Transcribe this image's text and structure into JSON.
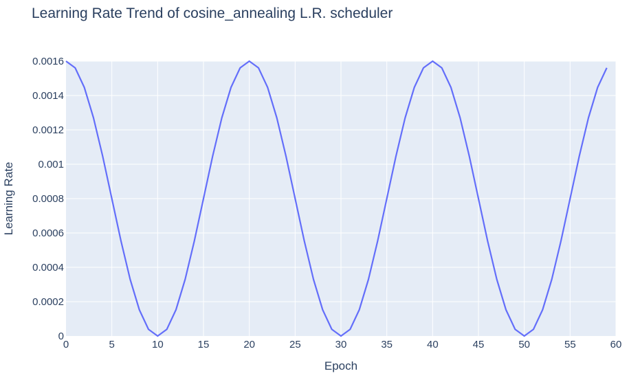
{
  "chart_data": {
    "type": "line",
    "title": "Learning Rate Trend of cosine_annealing L.R. scheduler",
    "xlabel": "Epoch",
    "ylabel": "Learning Rate",
    "xlim": [
      0,
      60
    ],
    "ylim": [
      0,
      0.0016
    ],
    "x_ticks": [
      0,
      5,
      10,
      15,
      20,
      25,
      30,
      35,
      40,
      45,
      50,
      55,
      60
    ],
    "x_tick_labels": [
      "0",
      "5",
      "10",
      "15",
      "20",
      "25",
      "30",
      "35",
      "40",
      "45",
      "50",
      "55",
      "60"
    ],
    "y_ticks": [
      0,
      0.0002,
      0.0004,
      0.0006,
      0.0008,
      0.001,
      0.0012,
      0.0014,
      0.0016
    ],
    "y_tick_labels": [
      "0",
      "0.0002",
      "0.0004",
      "0.0006",
      "0.0008",
      "0.001",
      "0.0012",
      "0.0014",
      "0.0016"
    ],
    "grid": true,
    "colors": {
      "line": "#636efa",
      "plot_bg": "#e5ecf6",
      "grid": "#ffffff",
      "text": "#2a3f5f"
    },
    "series": [
      {
        "x": [
          0,
          1,
          2,
          3,
          4,
          5,
          6,
          7,
          8,
          9,
          10,
          11,
          12,
          13,
          14,
          15,
          16,
          17,
          18,
          19,
          20,
          21,
          22,
          23,
          24,
          25,
          26,
          27,
          28,
          29,
          30,
          31,
          32,
          33,
          34,
          35,
          36,
          37,
          38,
          39,
          40,
          41,
          42,
          43,
          44,
          45,
          46,
          47,
          48,
          49,
          50,
          51,
          52,
          53,
          54,
          55,
          56,
          57,
          58,
          59
        ],
        "values": [
          0.0016,
          0.001561,
          0.001447,
          0.00127,
          0.001047,
          0.0008,
          0.000553,
          0.00033,
          0.000153,
          3.9e-05,
          0.0,
          3.9e-05,
          0.000153,
          0.00033,
          0.000553,
          0.0008,
          0.001047,
          0.00127,
          0.001447,
          0.001561,
          0.0016,
          0.001561,
          0.001447,
          0.00127,
          0.001047,
          0.0008,
          0.000553,
          0.00033,
          0.000153,
          3.9e-05,
          0.0,
          3.9e-05,
          0.000153,
          0.00033,
          0.000553,
          0.0008,
          0.001047,
          0.00127,
          0.001447,
          0.001561,
          0.0016,
          0.001561,
          0.001447,
          0.00127,
          0.001047,
          0.0008,
          0.000553,
          0.00033,
          0.000153,
          3.9e-05,
          0.0,
          3.9e-05,
          0.000153,
          0.00033,
          0.000553,
          0.0008,
          0.001047,
          0.00127,
          0.001447,
          0.001561
        ]
      }
    ]
  }
}
